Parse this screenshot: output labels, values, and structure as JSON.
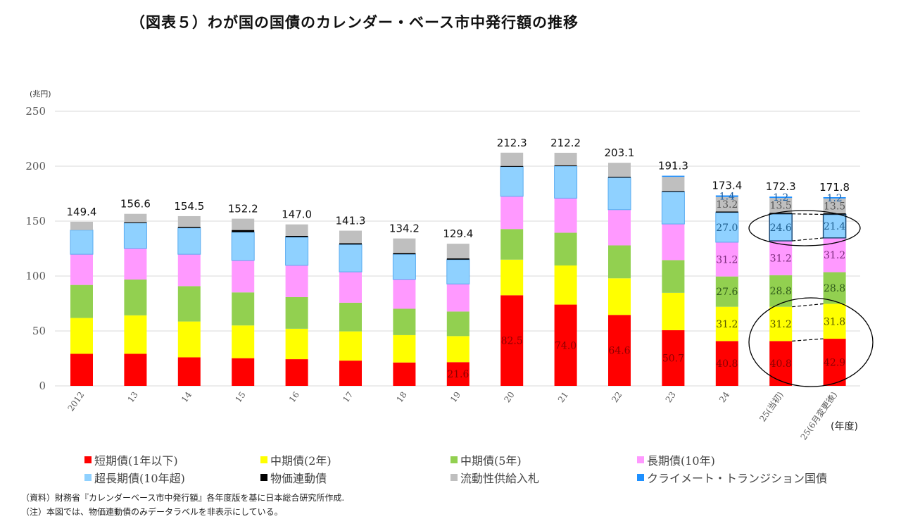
{
  "title": "（図表５）わが国の国債のカレンダー・ベース市中発行額の推移",
  "notes": [
    "（資料）財務省『カレンダーベース市中発行額』各年度版を基に日本総合研究所作成.",
    "（注）本図では、物価連動債のみデータラベルを非表示にしている。"
  ],
  "chart_data": {
    "type": "bar",
    "stacked": true,
    "title": "（図表５）わが国の国債のカレンダー・ベース市中発行額の推移",
    "ylabel": "(兆円)",
    "xlabel": "(年度)",
    "ylim": [
      0,
      250
    ],
    "yticks": [
      0,
      50,
      100,
      150,
      200,
      250
    ],
    "grid": true,
    "legend_position": "bottom",
    "categories": [
      "2012",
      "13",
      "14",
      "15",
      "16",
      "17",
      "18",
      "19",
      "20",
      "21",
      "22",
      "23",
      "24",
      "25(当初)",
      "25(6月変更後)"
    ],
    "totals": [
      "149.4",
      "156.6",
      "154.5",
      "152.2",
      "147.0",
      "141.3",
      "134.2",
      "129.4",
      "212.3",
      "212.2",
      "203.1",
      "191.3",
      "173.4",
      "172.3",
      "171.8"
    ],
    "series": [
      {
        "name": "短期債(1年以下)",
        "color": "#ff0000",
        "label_color": "#8b0000",
        "values": [
          29.2,
          29.2,
          26.0,
          25.2,
          24.3,
          23.0,
          21.3,
          21.6,
          82.5,
          74.0,
          64.6,
          50.7,
          40.8,
          40.8,
          42.9
        ],
        "labels": [
          null,
          null,
          null,
          null,
          null,
          null,
          null,
          "21.6",
          "82.5",
          "74.0",
          "64.6",
          "50.7",
          "40.8",
          "40.8",
          "42.9"
        ]
      },
      {
        "name": "中期債(2年)",
        "color": "#ffff00",
        "label_color": "#555500",
        "values": [
          32.6,
          35.0,
          32.6,
          29.8,
          27.7,
          26.6,
          24.9,
          23.7,
          32.4,
          35.6,
          33.3,
          34.0,
          31.2,
          31.2,
          31.8
        ],
        "labels": [
          null,
          null,
          null,
          null,
          null,
          null,
          null,
          null,
          null,
          null,
          null,
          null,
          "31.2",
          "31.2",
          "31.8"
        ]
      },
      {
        "name": "中期債(5年)",
        "color": "#92d050",
        "label_color": "#2f5a1a",
        "values": [
          30.1,
          32.6,
          32.2,
          30.1,
          28.8,
          26.1,
          24.0,
          22.4,
          27.9,
          29.8,
          30.0,
          29.8,
          27.6,
          28.8,
          28.8
        ],
        "labels": [
          null,
          null,
          null,
          null,
          null,
          null,
          null,
          null,
          null,
          null,
          null,
          null,
          "27.6",
          "28.8",
          "28.8"
        ]
      },
      {
        "name": "長期債(10年)",
        "color": "#ff99ff",
        "label_color": "#7a2a7a",
        "values": [
          27.9,
          28.4,
          29.0,
          29.2,
          29.0,
          28.1,
          26.8,
          25.1,
          29.8,
          31.5,
          32.5,
          32.9,
          31.2,
          31.2,
          31.2
        ],
        "labels": [
          null,
          null,
          null,
          null,
          null,
          null,
          null,
          null,
          null,
          null,
          null,
          null,
          "31.2",
          "31.2",
          "31.2"
        ]
      },
      {
        "name": "超長期債(10年超)",
        "color": "#8fd1ff",
        "label_color": "#1f5f8f",
        "values": [
          22.0,
          23.4,
          23.9,
          25.6,
          25.6,
          24.9,
          22.8,
          22.1,
          27.0,
          29.1,
          29.4,
          29.2,
          27.0,
          24.6,
          21.4
        ],
        "labels": [
          null,
          null,
          null,
          null,
          null,
          null,
          null,
          null,
          null,
          null,
          null,
          null,
          "27.0",
          "24.6",
          "21.4"
        ]
      },
      {
        "name": "物価連動債",
        "color": "#000000",
        "label_color": "#000000",
        "values": [
          0,
          0.3,
          1.0,
          2.0,
          1.2,
          1.2,
          1.2,
          1.2,
          0.6,
          0.8,
          0.6,
          0.8,
          1.0,
          1.0,
          1.0
        ],
        "labels": [
          null,
          null,
          null,
          null,
          null,
          null,
          null,
          null,
          null,
          null,
          null,
          null,
          null,
          null,
          null
        ]
      },
      {
        "name": "流動性供給入札",
        "color": "#bfbfbf",
        "label_color": "#555555",
        "values": [
          7.6,
          7.7,
          9.8,
          10.3,
          10.4,
          11.4,
          13.2,
          13.3,
          12.1,
          11.4,
          12.7,
          12.9,
          13.2,
          13.5,
          13.5
        ],
        "labels": [
          null,
          null,
          null,
          null,
          null,
          null,
          null,
          null,
          null,
          null,
          null,
          null,
          "13.2",
          "13.5",
          "13.5"
        ]
      },
      {
        "name": "クライメート・トランジション国債",
        "color": "#1e90ff",
        "label_color": "#1e5fa0",
        "values": [
          0,
          0,
          0,
          0,
          0,
          0,
          0,
          0,
          0,
          0,
          0,
          1.0,
          1.4,
          1.2,
          1.2
        ],
        "labels": [
          null,
          null,
          null,
          null,
          null,
          null,
          null,
          null,
          null,
          null,
          null,
          null,
          "1.4",
          "1.2",
          "1.2"
        ]
      }
    ]
  }
}
